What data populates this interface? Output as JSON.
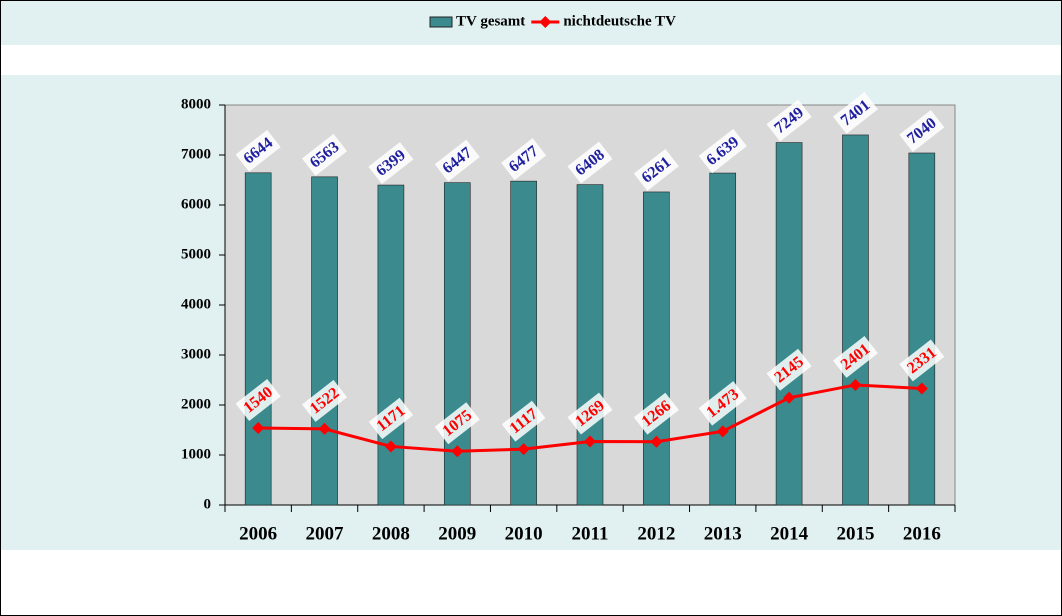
{
  "chart_data": {
    "type": "bar",
    "categories": [
      "2006",
      "2007",
      "2008",
      "2009",
      "2010",
      "2011",
      "2012",
      "2013",
      "2014",
      "2015",
      "2016"
    ],
    "series": [
      {
        "name": "TV gesamt",
        "color": "#3a8a8e",
        "type": "bar",
        "values": [
          6644,
          6563,
          6399,
          6447,
          6477,
          6408,
          6261,
          6639,
          7249,
          7401,
          7040
        ],
        "value_labels": [
          "6644",
          "6563",
          "6399",
          "6447",
          "6477",
          "6408",
          "6261",
          "6.639",
          "7249",
          "7401",
          "7040"
        ]
      },
      {
        "name": "nichtdeutsche TV",
        "color": "#ff0000",
        "type": "line",
        "values": [
          1540,
          1522,
          1171,
          1075,
          1117,
          1269,
          1266,
          1473,
          2145,
          2401,
          2331
        ],
        "value_labels": [
          "1540",
          "1522",
          "1171",
          "1075",
          "1117",
          "1269",
          "1266",
          "1.473",
          "2145",
          "2401",
          "2331"
        ]
      }
    ],
    "ylim": [
      0,
      8000
    ],
    "yticks": [
      0,
      1000,
      2000,
      3000,
      4000,
      5000,
      6000,
      7000,
      8000
    ],
    "legend": "top"
  }
}
